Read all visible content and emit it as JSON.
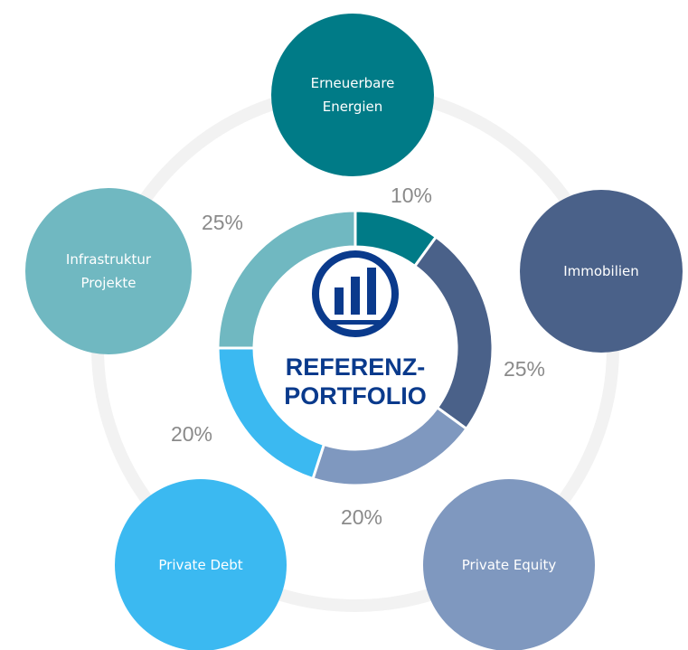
{
  "chart_data": {
    "type": "donut",
    "categories": [
      "Erneuerbare Energien",
      "Immobilien",
      "Private Equity",
      "Private Debt",
      "Infrastruktur Projekte"
    ],
    "values": [
      10,
      25,
      20,
      20,
      25
    ],
    "value_labels": [
      "10%",
      "25%",
      "20%",
      "20%",
      "25%"
    ],
    "colors": [
      "#007b87",
      "#4a6189",
      "#7f98bf",
      "#3bb9f1",
      "#70b8c1"
    ],
    "center_label": [
      "REFERENZ-",
      "PORTFOLIO"
    ]
  }
}
